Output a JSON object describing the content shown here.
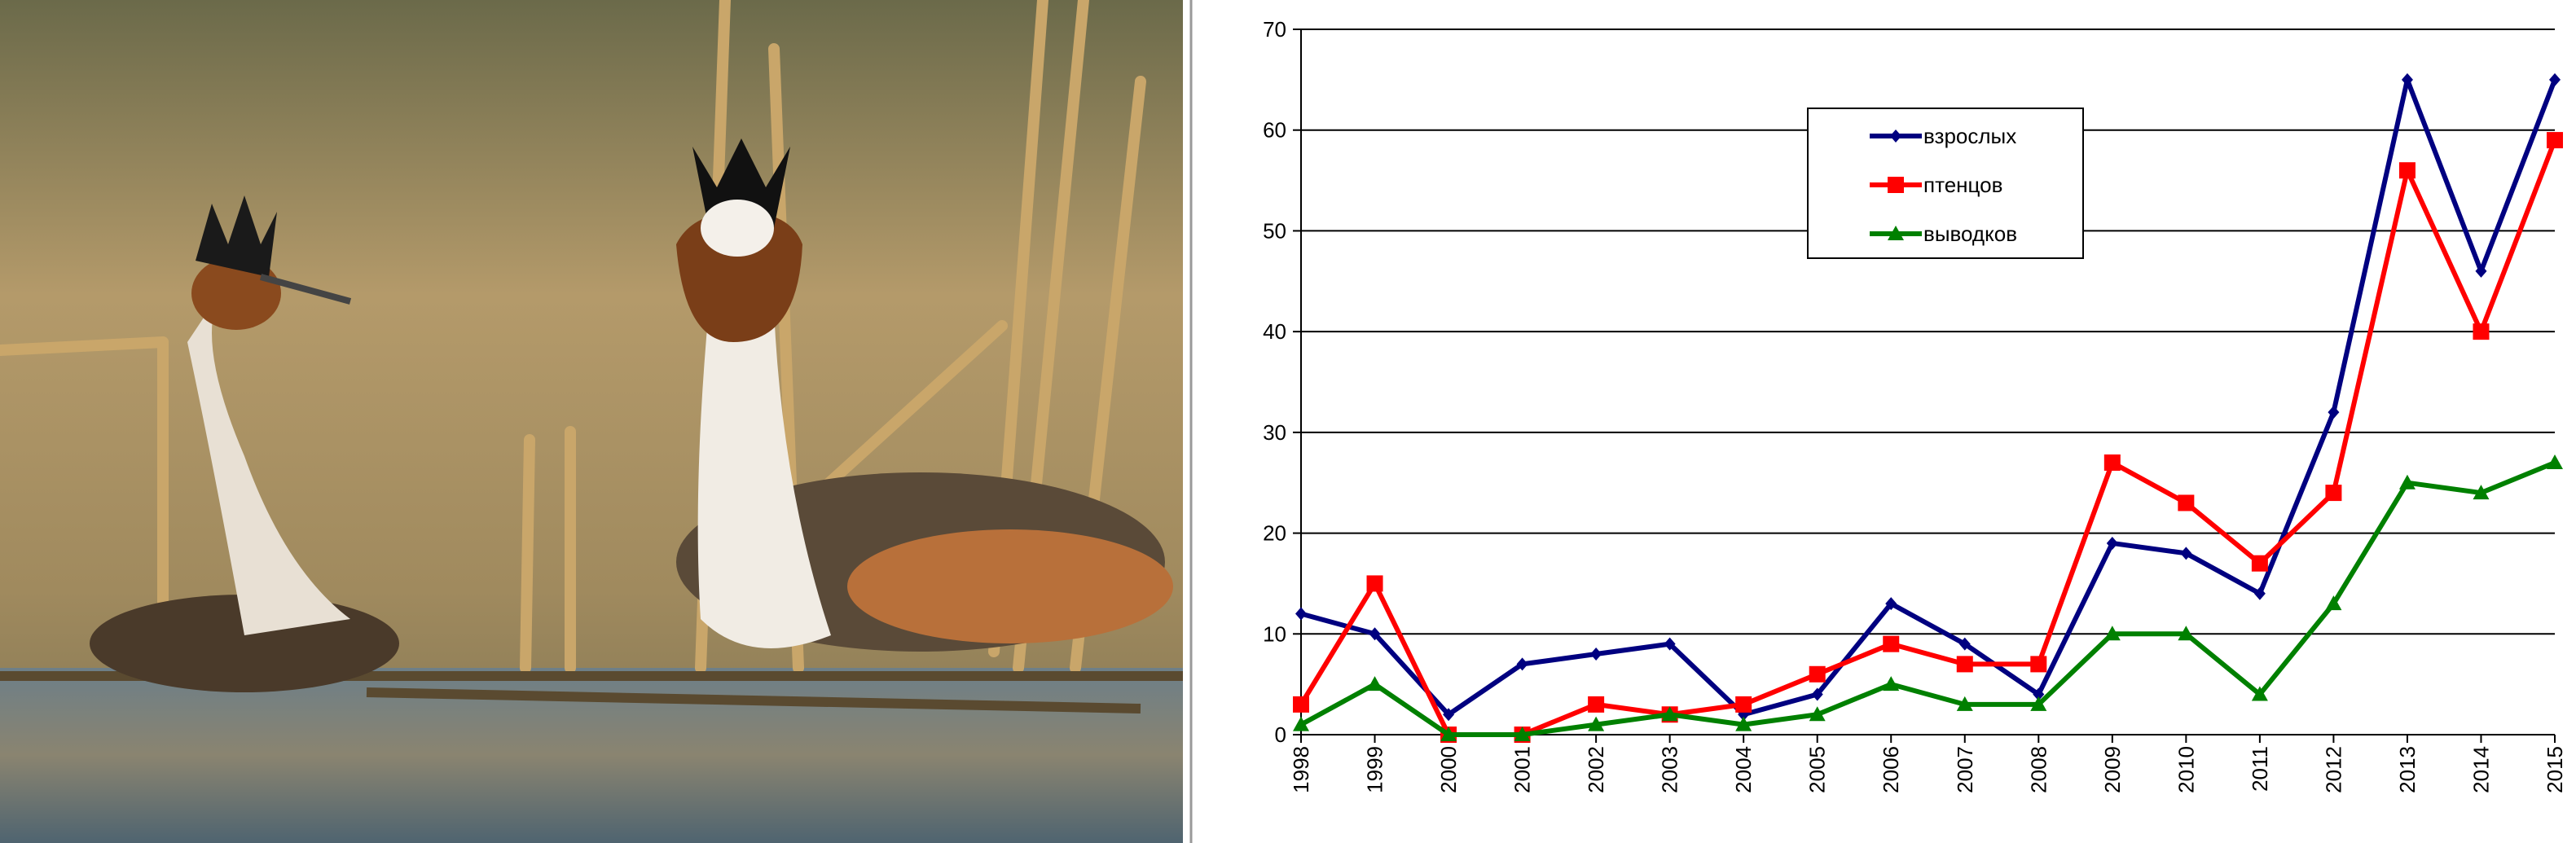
{
  "chart_data": {
    "type": "line",
    "x": [
      1998,
      1999,
      2000,
      2001,
      2002,
      2003,
      2004,
      2005,
      2006,
      2007,
      2008,
      2009,
      2010,
      2011,
      2012,
      2013,
      2014,
      2015
    ],
    "xlim": [
      1998,
      2015
    ],
    "series": [
      {
        "name": "взрослых",
        "color": "#000080",
        "marker": "diamond",
        "values": [
          12,
          10,
          2,
          7,
          8,
          9,
          2,
          4,
          13,
          9,
          4,
          19,
          18,
          14,
          32,
          65,
          46,
          65
        ]
      },
      {
        "name": "птенцов",
        "color": "#ff0000",
        "marker": "square",
        "values": [
          3,
          15,
          0,
          0,
          3,
          2,
          3,
          6,
          9,
          7,
          7,
          27,
          23,
          17,
          24,
          56,
          40,
          59
        ]
      },
      {
        "name": "выводков",
        "color": "#008000",
        "marker": "triangle",
        "values": [
          1,
          5,
          0,
          0,
          1,
          2,
          1,
          2,
          5,
          3,
          3,
          10,
          10,
          4,
          13,
          25,
          24,
          27
        ]
      }
    ],
    "ylim": [
      0,
      70
    ],
    "yticks": [
      0,
      10,
      20,
      30,
      40,
      50,
      60,
      70
    ],
    "grid": true
  }
}
